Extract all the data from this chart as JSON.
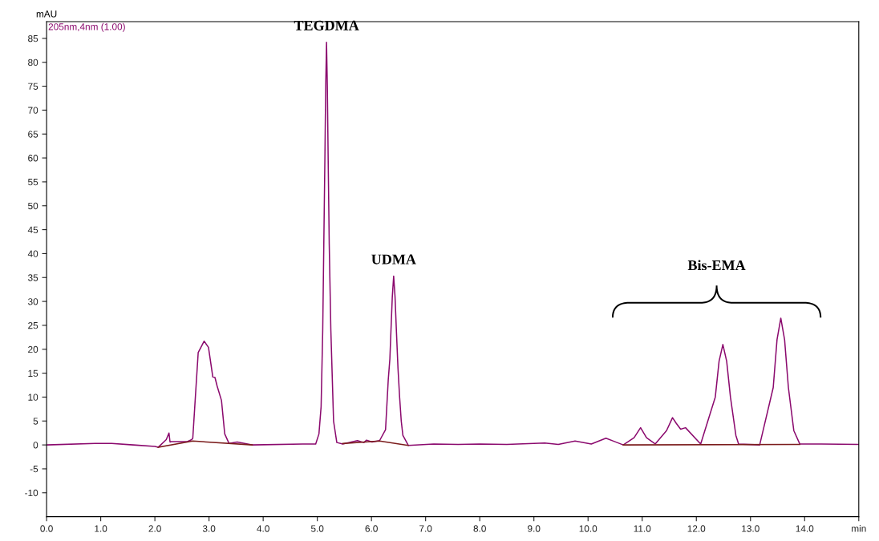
{
  "chart_data": {
    "type": "line",
    "ylabel": "mAU",
    "xlim": [
      0,
      15
    ],
    "ylim": [
      -15,
      88.5
    ],
    "xticks": [
      {
        "value": 0,
        "label": "0.0"
      },
      {
        "value": 1,
        "label": "1.0"
      },
      {
        "value": 2,
        "label": "2.0"
      },
      {
        "value": 3,
        "label": "3.0"
      },
      {
        "value": 4,
        "label": "4.0"
      },
      {
        "value": 5,
        "label": "5.0"
      },
      {
        "value": 6,
        "label": "6.0"
      },
      {
        "value": 7,
        "label": "7.0"
      },
      {
        "value": 8,
        "label": "8.0"
      },
      {
        "value": 9,
        "label": "9.0"
      },
      {
        "value": 10,
        "label": "10.0"
      },
      {
        "value": 11,
        "label": "11.0"
      },
      {
        "value": 12,
        "label": "12.0"
      },
      {
        "value": 13,
        "label": "13.0"
      },
      {
        "value": 14,
        "label": "14.0"
      },
      {
        "value": 15,
        "label": "min"
      }
    ],
    "yticks": [
      -10,
      -5,
      0,
      5,
      10,
      15,
      20,
      25,
      30,
      35,
      40,
      45,
      50,
      55,
      60,
      65,
      70,
      75,
      80,
      85
    ],
    "grid": false,
    "legend": false,
    "marker": "none",
    "line_style": "solid",
    "series": [
      {
        "name": "205nm,4nm (1.00)",
        "color": "#8b0a6e",
        "x": [
          0,
          0.9,
          1.2,
          1.6,
          2.0,
          2.06,
          2.21,
          2.26,
          2.28,
          2.3,
          2.6,
          2.68,
          2.7,
          2.75,
          2.8,
          2.91,
          2.99,
          3.07,
          3.11,
          3.15,
          3.23,
          3.29,
          3.37,
          3.52,
          3.79,
          4.73,
          4.97,
          5.03,
          5.07,
          5.1,
          5.12,
          5.14,
          5.155,
          5.17,
          5.185,
          5.2,
          5.22,
          5.25,
          5.3,
          5.36,
          5.47,
          5.74,
          5.86,
          5.91,
          6.01,
          6.15,
          6.26,
          6.31,
          6.34,
          6.36,
          6.385,
          6.41,
          6.435,
          6.46,
          6.49,
          6.52,
          6.55,
          6.58,
          6.68,
          7.15,
          7.6,
          8.0,
          8.5,
          9.2,
          9.45,
          9.76,
          10.06,
          10.33,
          10.65,
          10.85,
          10.97,
          11.08,
          11.24,
          11.45,
          11.56,
          11.63,
          11.71,
          11.8,
          12.08,
          12.35,
          12.42,
          12.49,
          12.56,
          12.63,
          12.73,
          12.78,
          13.17,
          13.42,
          13.49,
          13.56,
          13.63,
          13.7,
          13.8,
          13.91,
          14.31,
          15.0
        ],
        "values": [
          0,
          0.3,
          0.3,
          0,
          -0.3,
          -0.5,
          1.1,
          2.5,
          0.6,
          0.7,
          0.7,
          1.1,
          1.4,
          10.4,
          19.3,
          21.7,
          20.4,
          14.2,
          14.1,
          12.3,
          9.3,
          2.3,
          0.3,
          0.6,
          0,
          0.2,
          0.2,
          2.3,
          8,
          24,
          42,
          60,
          75,
          84.2,
          75,
          60,
          42,
          24,
          5,
          0.5,
          0.2,
          0.9,
          0.5,
          1.0,
          0.6,
          0.9,
          3.2,
          13.6,
          18,
          23.9,
          31,
          35.3,
          31,
          24,
          16,
          10,
          5,
          2,
          -0.1,
          0.2,
          0.1,
          0.2,
          0.1,
          0.4,
          0.1,
          0.8,
          0.2,
          1.4,
          0,
          1.5,
          3.6,
          1.5,
          0.2,
          3.0,
          5.7,
          4.5,
          3.3,
          3.6,
          0.2,
          10,
          17.5,
          21.0,
          17.5,
          10,
          2,
          0.2,
          0,
          12,
          22,
          26.5,
          22,
          12,
          3,
          0.2,
          0.2,
          0.1
        ]
      },
      {
        "color": "#7b1c1c",
        "x": [
          2.06,
          2.7,
          3.8,
          4.5,
          5.47,
          6.15,
          6.68,
          7.0,
          10.65,
          13.91
        ],
        "values": [
          -0.5,
          0.8,
          0.0,
          null,
          0.3,
          0.8,
          -0.1,
          null,
          0,
          0.1
        ]
      }
    ],
    "annotations": [
      {
        "text": "TEGDMA",
        "x": 5.17,
        "y": 84.2
      },
      {
        "text": "UDMA",
        "x": 6.41,
        "y": 35.3
      },
      "Bis-EMA"
    ]
  }
}
